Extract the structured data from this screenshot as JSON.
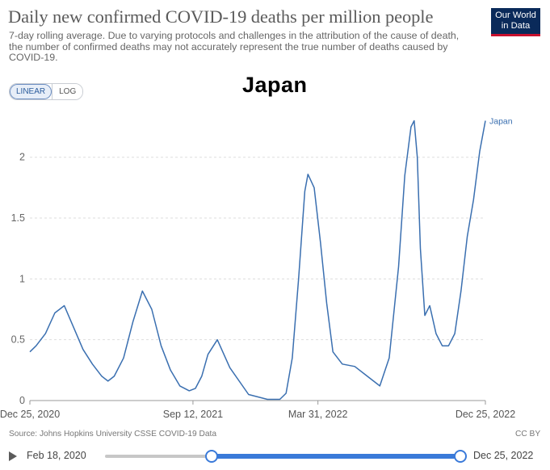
{
  "header": {
    "title": "Daily new confirmed COVID-19 deaths per million people",
    "subtitle": "7-day rolling average. Due to varying protocols and challenges in the attribution of the cause of death, the number of confirmed deaths may not accurately represent the true number of deaths caused by COVID-19.",
    "logo_line1": "Our World",
    "logo_line2": "in Data"
  },
  "scale_toggle": {
    "linear_label": "LINEAR",
    "log_label": "LOG",
    "selected": "LINEAR"
  },
  "country_title": "Japan",
  "colors": {
    "line": "#3a6fb0",
    "grid": "#dddddd",
    "accent": "#3a7ad9",
    "logo_bg": "#0a2a5a",
    "logo_stripe": "#c8102e"
  },
  "chart_data": {
    "type": "line",
    "title": "Daily new confirmed COVID-19 deaths per million people",
    "ylabel": "",
    "xlabel": "",
    "ylim": [
      0,
      2.35
    ],
    "grid": "horizontal dashed",
    "y_ticks": [
      0,
      0.5,
      1,
      1.5,
      2
    ],
    "y_tick_labels": [
      "0",
      "0.5",
      "1",
      "1.5",
      "2"
    ],
    "x_ticks": [
      0,
      261,
      461,
      729
    ],
    "x_tick_labels": [
      "Dec 25, 2020",
      "Sep 12, 2021",
      "Mar 31, 2022",
      "Dec 25, 2022"
    ],
    "x_unit": "days since Dec 25, 2020",
    "series": [
      {
        "name": "Japan",
        "x": [
          0,
          10,
          25,
          40,
          55,
          70,
          85,
          100,
          115,
          125,
          135,
          150,
          165,
          180,
          195,
          210,
          225,
          240,
          255,
          265,
          275,
          285,
          300,
          320,
          350,
          380,
          400,
          410,
          420,
          430,
          440,
          445,
          455,
          465,
          475,
          485,
          500,
          520,
          540,
          560,
          575,
          590,
          600,
          610,
          615,
          620,
          625,
          632,
          640,
          650,
          660,
          670,
          680,
          690,
          700,
          710,
          720,
          729
        ],
        "y": [
          0.4,
          0.45,
          0.55,
          0.72,
          0.78,
          0.6,
          0.42,
          0.3,
          0.2,
          0.16,
          0.2,
          0.35,
          0.65,
          0.9,
          0.75,
          0.45,
          0.25,
          0.12,
          0.08,
          0.1,
          0.2,
          0.38,
          0.5,
          0.27,
          0.05,
          0.01,
          0.01,
          0.06,
          0.35,
          1.0,
          1.72,
          1.86,
          1.75,
          1.3,
          0.8,
          0.4,
          0.3,
          0.28,
          0.2,
          0.12,
          0.35,
          1.1,
          1.85,
          2.25,
          2.3,
          2.0,
          1.25,
          0.7,
          0.78,
          0.55,
          0.45,
          0.45,
          0.55,
          0.9,
          1.35,
          1.65,
          2.05,
          2.3
        ]
      }
    ],
    "line_label": "Japan"
  },
  "footer": {
    "source": "Source: Johns Hopkins University CSSE COVID-19 Data",
    "license": "CC BY"
  },
  "timeline": {
    "start_label": "Feb 18, 2020",
    "end_label": "Dec 25, 2022"
  }
}
